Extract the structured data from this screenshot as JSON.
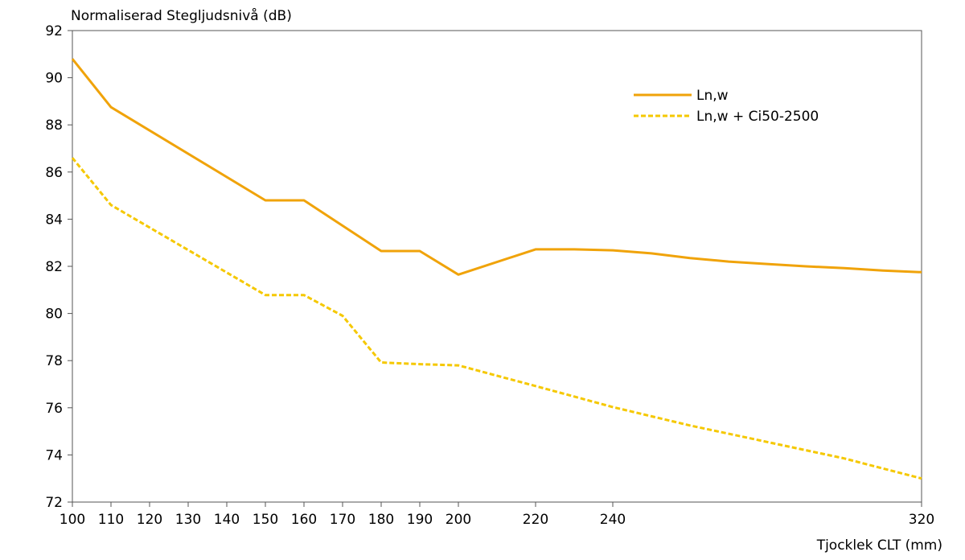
{
  "chart_data": {
    "type": "line",
    "ylabel": "Normaliserad Stegljudsnivå (dB)",
    "xlabel": "Tjocklek CLT (mm)",
    "xlim": [
      100,
      320
    ],
    "ylim": [
      72,
      92
    ],
    "xticks": [
      100,
      110,
      120,
      130,
      140,
      150,
      160,
      170,
      180,
      190,
      200,
      220,
      240,
      320
    ],
    "yticks": [
      72,
      74,
      76,
      78,
      80,
      82,
      84,
      86,
      88,
      90,
      92
    ],
    "grid": false,
    "legend_position": "top-right",
    "series": [
      {
        "name": "Ln,w",
        "color": "#F0A30A",
        "style": "solid",
        "x": [
          100,
          110,
          150,
          160,
          180,
          190,
          200,
          220,
          230,
          240,
          250,
          260,
          270,
          280,
          290,
          300,
          310,
          320
        ],
        "y": [
          90.8,
          88.75,
          84.8,
          84.8,
          82.65,
          82.65,
          81.65,
          82.72,
          82.72,
          82.68,
          82.55,
          82.35,
          82.2,
          82.1,
          82.0,
          81.92,
          81.82,
          81.75
        ]
      },
      {
        "name": "Ln,w + Ci50-2500",
        "color": "#F5C800",
        "style": "dashed",
        "x": [
          100,
          110,
          150,
          160,
          170,
          180,
          190,
          200,
          220,
          240,
          260,
          280,
          300,
          320
        ],
        "y": [
          86.6,
          84.6,
          80.78,
          80.78,
          79.9,
          77.92,
          77.85,
          77.8,
          76.92,
          76.03,
          75.25,
          74.55,
          73.85,
          73.0
        ]
      }
    ]
  }
}
